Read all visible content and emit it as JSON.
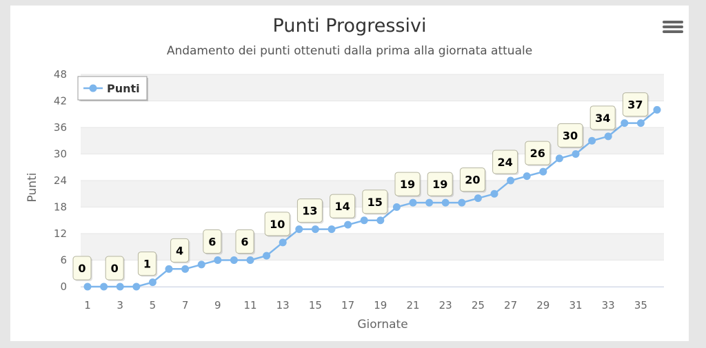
{
  "chart_data": {
    "type": "line",
    "title": "Punti Progressivi",
    "subtitle": "Andamento dei punti ottenuti dalla prima alla giornata attuale",
    "xlabel": "Giornate",
    "ylabel": "Punti",
    "ylim": [
      0,
      48
    ],
    "y_ticks": [
      0,
      6,
      12,
      18,
      24,
      30,
      36,
      42,
      48
    ],
    "xlim": [
      1,
      36
    ],
    "x_ticks": [
      1,
      3,
      5,
      7,
      9,
      11,
      13,
      15,
      17,
      19,
      21,
      23,
      25,
      27,
      29,
      31,
      33,
      35
    ],
    "x": [
      1,
      2,
      3,
      4,
      5,
      6,
      7,
      8,
      9,
      10,
      11,
      12,
      13,
      14,
      15,
      16,
      17,
      18,
      19,
      20,
      21,
      22,
      23,
      24,
      25,
      26,
      27,
      28,
      29,
      30,
      31,
      32,
      33,
      34,
      35,
      36
    ],
    "series": [
      {
        "name": "Punti",
        "color": "#7cb5ec",
        "values": [
          0,
          0,
          0,
          0,
          1,
          4,
          4,
          5,
          6,
          6,
          6,
          7,
          10,
          13,
          13,
          13,
          14,
          15,
          15,
          18,
          19,
          19,
          19,
          19,
          20,
          21,
          24,
          25,
          26,
          29,
          30,
          33,
          34,
          37,
          37,
          40
        ]
      }
    ],
    "data_labels": [
      {
        "x": 1,
        "y": 0,
        "text": "0"
      },
      {
        "x": 3,
        "y": 0,
        "text": "0"
      },
      {
        "x": 5,
        "y": 1,
        "text": "1"
      },
      {
        "x": 7,
        "y": 4,
        "text": "4"
      },
      {
        "x": 9,
        "y": 6,
        "text": "6"
      },
      {
        "x": 11,
        "y": 6,
        "text": "6"
      },
      {
        "x": 13,
        "y": 10,
        "text": "10"
      },
      {
        "x": 15,
        "y": 13,
        "text": "13"
      },
      {
        "x": 17,
        "y": 14,
        "text": "14"
      },
      {
        "x": 19,
        "y": 15,
        "text": "15"
      },
      {
        "x": 21,
        "y": 19,
        "text": "19"
      },
      {
        "x": 23,
        "y": 19,
        "text": "19"
      },
      {
        "x": 25,
        "y": 20,
        "text": "20"
      },
      {
        "x": 27,
        "y": 24,
        "text": "24"
      },
      {
        "x": 29,
        "y": 26,
        "text": "26"
      },
      {
        "x": 31,
        "y": 30,
        "text": "30"
      },
      {
        "x": 33,
        "y": 34,
        "text": "34"
      },
      {
        "x": 35,
        "y": 37,
        "text": "37"
      }
    ],
    "grid": true,
    "alternate_band_color": "#f2f2f2",
    "legend": {
      "placement": "top-left",
      "label": "Punti"
    }
  },
  "menu": {
    "icon": "hamburger-menu-icon"
  }
}
